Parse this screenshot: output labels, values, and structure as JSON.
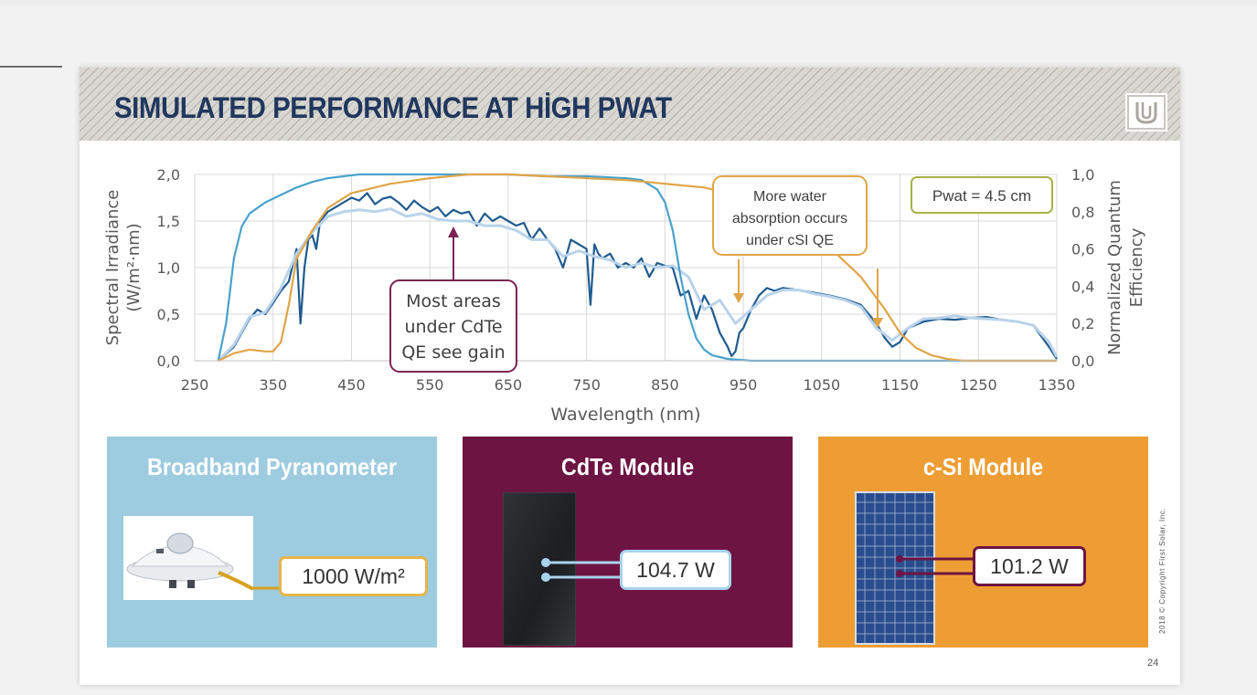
{
  "slide": {
    "title": "SIMULATED PERFORMANCE AT HİGH PWAT",
    "page_number": "24",
    "copyright": "2018 © Copyright First Solar, Inc.",
    "logo_icon": "first-solar-logo-icon"
  },
  "panels": [
    {
      "title": "Broadband Pyranometer",
      "value": "1000 W/m²",
      "bg_color": "#9dcbdf",
      "icon": "pyranometer-image"
    },
    {
      "title": "CdTe Module",
      "value": "104.7 W",
      "bg_color": "#6d1442",
      "icon": "cdte-module-image"
    },
    {
      "title": "c-Si Module",
      "value": "101.2 W",
      "bg_color": "#ee9d34",
      "icon": "csi-module-image"
    }
  ],
  "chart_data": {
    "type": "line",
    "xlabel": "Wavelength (nm)",
    "ylabel_left": [
      "Spectral Irradiance",
      "(W/m²·nm)"
    ],
    "ylabel_right": [
      "Normalized Quantum",
      "Efficiency"
    ],
    "xlim": [
      250,
      1350
    ],
    "ylim_left": [
      0,
      2
    ],
    "ylim_right": [
      0,
      1
    ],
    "x_ticks": [
      "250",
      "350",
      "450",
      "550",
      "650",
      "750",
      "850",
      "950",
      "1050",
      "1150",
      "1250",
      "1350"
    ],
    "y_ticks_left": [
      "0,0",
      "0,5",
      "1,0",
      "1,5",
      "2,0"
    ],
    "y_ticks_right": [
      "0,0",
      "0,2",
      "0,4",
      "0,6",
      "0,8",
      "1,0"
    ],
    "grid": true,
    "series": [
      {
        "axis": "left",
        "color": "#1f5b8f",
        "x": [
          280,
          300,
          310,
          320,
          330,
          340,
          350,
          360,
          370,
          380,
          385,
          390,
          395,
          400,
          405,
          410,
          420,
          430,
          440,
          450,
          460,
          470,
          480,
          490,
          500,
          510,
          520,
          530,
          540,
          550,
          560,
          570,
          580,
          590,
          600,
          610,
          620,
          630,
          640,
          650,
          660,
          670,
          680,
          690,
          700,
          710,
          720,
          730,
          740,
          750,
          755,
          760,
          765,
          770,
          780,
          790,
          800,
          810,
          820,
          830,
          840,
          850,
          860,
          870,
          880,
          890,
          900,
          910,
          920,
          930,
          935,
          940,
          945,
          950,
          955,
          960,
          970,
          980,
          990,
          1000,
          1020,
          1040,
          1060,
          1080,
          1100,
          1110,
          1120,
          1130,
          1140,
          1150,
          1160,
          1180,
          1200,
          1220,
          1240,
          1260,
          1280,
          1300,
          1320,
          1340,
          1350
        ],
        "y": [
          0.0,
          0.15,
          0.3,
          0.45,
          0.55,
          0.5,
          0.62,
          0.75,
          0.85,
          1.2,
          0.4,
          1.0,
          1.3,
          1.35,
          1.2,
          1.5,
          1.6,
          1.65,
          1.7,
          1.75,
          1.72,
          1.8,
          1.68,
          1.74,
          1.76,
          1.7,
          1.62,
          1.72,
          1.65,
          1.6,
          1.65,
          1.55,
          1.62,
          1.58,
          1.6,
          1.45,
          1.58,
          1.5,
          1.55,
          1.5,
          1.45,
          1.48,
          1.3,
          1.42,
          1.3,
          1.2,
          1.0,
          1.3,
          1.25,
          1.2,
          0.6,
          1.25,
          1.15,
          1.1,
          1.15,
          1.0,
          1.05,
          1.0,
          1.1,
          0.9,
          1.05,
          1.02,
          1.0,
          0.7,
          0.75,
          0.45,
          0.7,
          0.55,
          0.3,
          0.15,
          0.05,
          0.1,
          0.3,
          0.35,
          0.45,
          0.55,
          0.7,
          0.78,
          0.75,
          0.78,
          0.76,
          0.73,
          0.7,
          0.66,
          0.6,
          0.5,
          0.4,
          0.25,
          0.15,
          0.2,
          0.35,
          0.42,
          0.45,
          0.44,
          0.46,
          0.47,
          0.44,
          0.42,
          0.38,
          0.15,
          0.02
        ]
      },
      {
        "axis": "left",
        "color": "#b9d3ea",
        "x": [
          280,
          300,
          320,
          340,
          360,
          380,
          400,
          420,
          440,
          460,
          480,
          500,
          520,
          540,
          560,
          580,
          600,
          620,
          640,
          660,
          680,
          700,
          720,
          740,
          760,
          780,
          800,
          820,
          840,
          860,
          880,
          900,
          920,
          940,
          960,
          980,
          1000,
          1020,
          1040,
          1060,
          1080,
          1100,
          1120,
          1140,
          1160,
          1180,
          1200,
          1220,
          1240,
          1260,
          1280,
          1300,
          1320,
          1340,
          1350
        ],
        "y": [
          0.0,
          0.17,
          0.47,
          0.52,
          0.78,
          1.15,
          1.38,
          1.55,
          1.6,
          1.62,
          1.6,
          1.63,
          1.55,
          1.58,
          1.52,
          1.5,
          1.5,
          1.45,
          1.45,
          1.4,
          1.3,
          1.3,
          1.12,
          1.18,
          1.12,
          1.08,
          1.0,
          1.05,
          1.0,
          1.02,
          0.9,
          0.55,
          0.65,
          0.4,
          0.55,
          0.7,
          0.76,
          0.76,
          0.72,
          0.69,
          0.65,
          0.58,
          0.35,
          0.22,
          0.35,
          0.45,
          0.46,
          0.48,
          0.46,
          0.45,
          0.44,
          0.42,
          0.38,
          0.2,
          0.04
        ]
      },
      {
        "name": "CdTe QE",
        "axis": "right",
        "color": "#4aa2cc",
        "x": [
          280,
          290,
          300,
          310,
          320,
          330,
          340,
          360,
          380,
          400,
          420,
          440,
          460,
          480,
          500,
          550,
          600,
          650,
          700,
          750,
          800,
          820,
          840,
          850,
          860,
          870,
          880,
          890,
          900,
          910,
          930,
          960,
          1350
        ],
        "y": [
          0.0,
          0.2,
          0.55,
          0.72,
          0.79,
          0.82,
          0.85,
          0.89,
          0.93,
          0.96,
          0.98,
          0.99,
          1.0,
          1.0,
          1.0,
          1.0,
          1.0,
          1.0,
          0.99,
          0.99,
          0.98,
          0.97,
          0.92,
          0.85,
          0.7,
          0.45,
          0.25,
          0.12,
          0.06,
          0.03,
          0.01,
          0.0,
          0.0
        ]
      },
      {
        "name": "c-Si QE",
        "axis": "right",
        "color": "#e0a548",
        "x": [
          280,
          300,
          320,
          340,
          350,
          360,
          370,
          380,
          390,
          400,
          420,
          450,
          500,
          550,
          600,
          650,
          700,
          750,
          800,
          850,
          900,
          950,
          1000,
          1050,
          1100,
          1130,
          1150,
          1170,
          1190,
          1210,
          1230,
          1260,
          1300,
          1350
        ],
        "y": [
          0.0,
          0.04,
          0.06,
          0.05,
          0.05,
          0.1,
          0.3,
          0.55,
          0.62,
          0.7,
          0.82,
          0.9,
          0.95,
          0.98,
          1.0,
          1.0,
          0.99,
          0.98,
          0.97,
          0.95,
          0.93,
          0.88,
          0.8,
          0.65,
          0.45,
          0.28,
          0.15,
          0.07,
          0.03,
          0.01,
          0.0,
          0.0,
          0.0,
          0.0
        ]
      }
    ],
    "annotations": [
      {
        "text": [
          "Most areas",
          "under CdTe",
          "QE see gain"
        ],
        "color": "#7b2452"
      },
      {
        "text": [
          "More water",
          "absorption occurs",
          "under cSI QE"
        ],
        "color": "#e0a548"
      },
      {
        "text": [
          "Pwat = 4.5 cm"
        ],
        "color": "#a6b24a"
      }
    ]
  }
}
